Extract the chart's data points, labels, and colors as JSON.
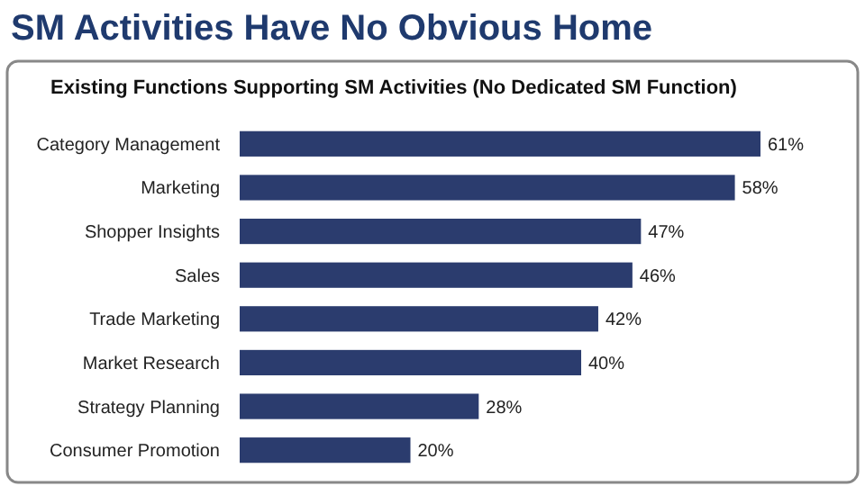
{
  "chart_data": {
    "type": "bar",
    "orientation": "horizontal",
    "title": "SM Activities Have No Obvious Home",
    "subtitle": "Existing Functions Supporting SM Activities (No Dedicated SM Function)",
    "categories": [
      "Category Management",
      "Marketing",
      "Shopper Insights",
      "Sales",
      "Trade Marketing",
      "Market Research",
      "Strategy Planning",
      "Consumer Promotion"
    ],
    "values": [
      61,
      58,
      47,
      46,
      42,
      40,
      28,
      20
    ],
    "value_labels": [
      "61%",
      "58%",
      "47%",
      "46%",
      "42%",
      "40%",
      "28%",
      "20%"
    ],
    "color": "#2b3c6e"
  }
}
